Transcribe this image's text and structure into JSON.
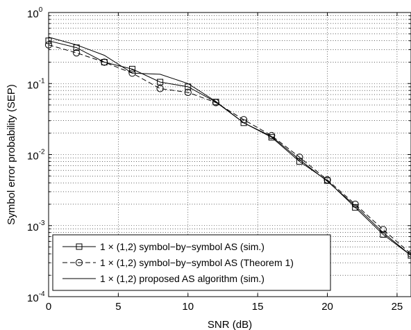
{
  "chart_data": {
    "type": "line",
    "xlabel": "SNR (dB)",
    "ylabel": "Symbol error probability (SEP)",
    "xlim": [
      0,
      26
    ],
    "ylim": [
      0.0001,
      1
    ],
    "yscale": "log",
    "grid": true,
    "legend_position": "bottom-left",
    "x_ticks": [
      "0",
      "5",
      "10",
      "15",
      "20",
      "25"
    ],
    "y_ticks": [
      {
        "base": "10",
        "exp": "0",
        "value": 1
      },
      {
        "base": "10",
        "exp": "-1",
        "value": 0.1
      },
      {
        "base": "10",
        "exp": "-2",
        "value": 0.01
      },
      {
        "base": "10",
        "exp": "-3",
        "value": 0.001
      },
      {
        "base": "10",
        "exp": "-4",
        "value": 0.0001
      }
    ],
    "series": [
      {
        "name": "1 × (1,2) symbol−by−symbol AS (sim.)",
        "marker": "square",
        "line": "solid",
        "x": [
          0,
          2,
          4,
          6,
          8,
          10,
          12,
          14,
          16,
          18,
          20,
          22,
          24,
          26
        ],
        "y": [
          0.4,
          0.32,
          0.2,
          0.16,
          0.105,
          0.09,
          0.055,
          0.028,
          0.0175,
          0.008,
          0.0043,
          0.0018,
          0.00075,
          0.00038
        ]
      },
      {
        "name": "1 × (1,2) symbol−by−symbol AS (Theorem 1)",
        "marker": "circle",
        "line": "dashed",
        "x": [
          0,
          2,
          4,
          6,
          8,
          10,
          12,
          14,
          16,
          18,
          20,
          22,
          24,
          26
        ],
        "y": [
          0.35,
          0.27,
          0.2,
          0.14,
          0.085,
          0.075,
          0.054,
          0.031,
          0.0185,
          0.0092,
          0.0044,
          0.002,
          0.00088,
          0.0004
        ]
      },
      {
        "name": "1 × (1,2) proposed AS algorithm (sim.)",
        "marker": "none",
        "line": "solid",
        "x": [
          0,
          2,
          4,
          6,
          8,
          10,
          12,
          14,
          16,
          18,
          20,
          22,
          24,
          26
        ],
        "y": [
          0.45,
          0.35,
          0.25,
          0.14,
          0.135,
          0.1,
          0.056,
          0.028,
          0.018,
          0.0085,
          0.0042,
          0.0019,
          0.0008,
          0.00038
        ]
      }
    ],
    "line_color": "#000000",
    "grid_color": "#000000"
  }
}
